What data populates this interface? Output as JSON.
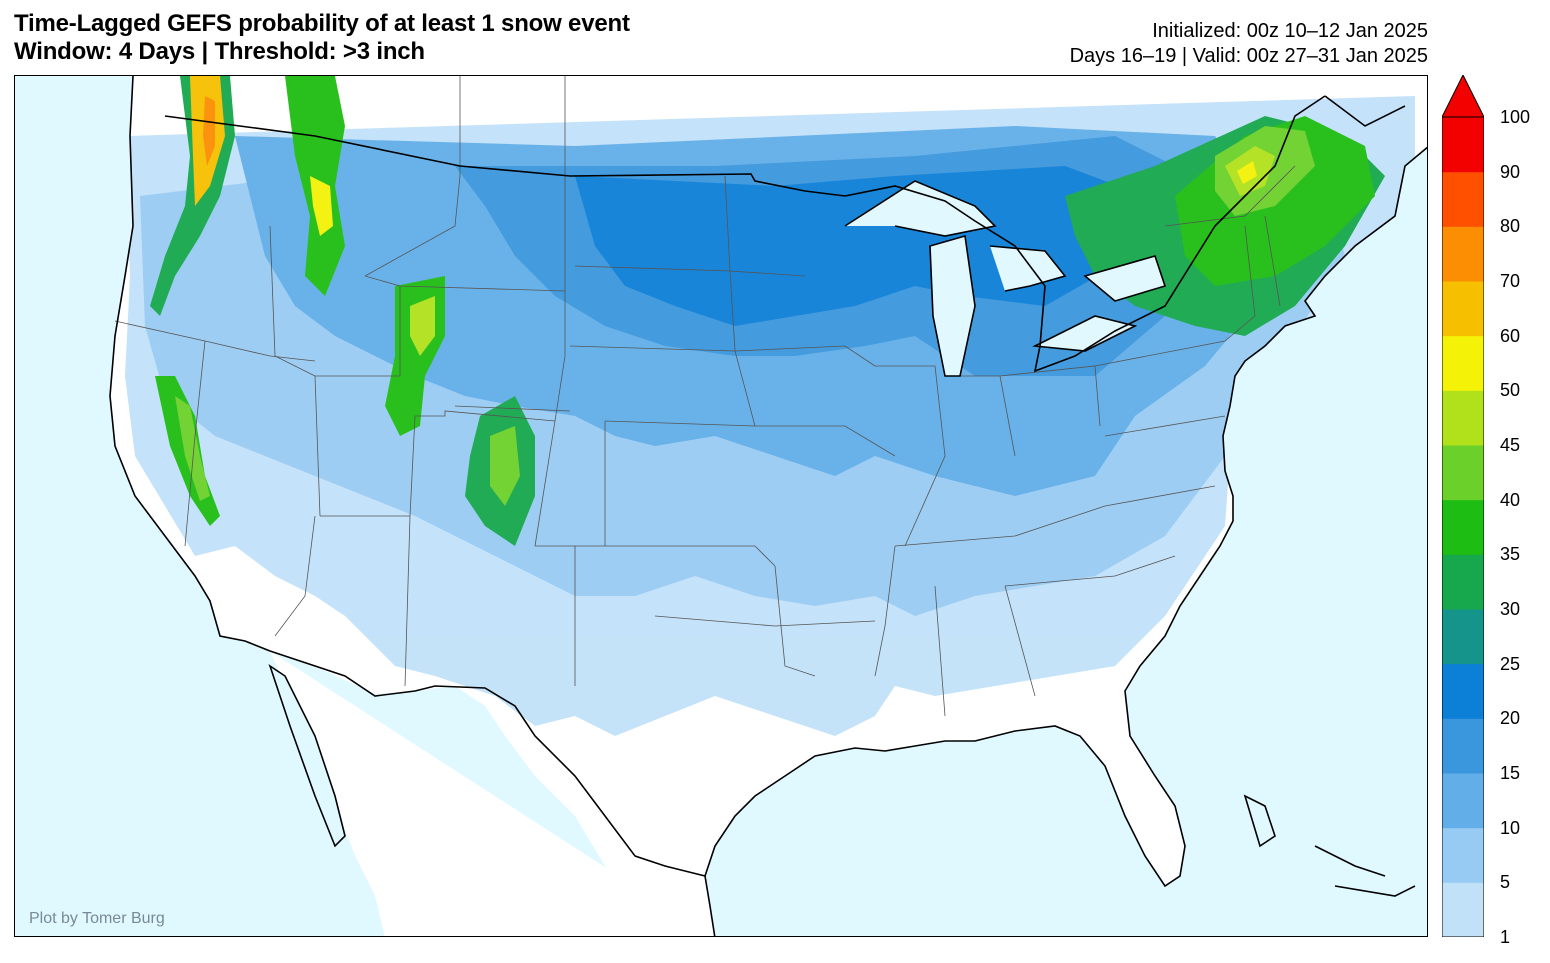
{
  "header": {
    "title_line1": "Time-Lagged GEFS probability of at least 1 snow event",
    "title_line2": "Window: 4 Days | Threshold: >3 inch",
    "initialized": "Initialized: 00z 10–12 Jan 2025",
    "valid": "Days 16–19 | Valid: 00z 27–31 Jan 2025"
  },
  "map": {
    "credit": "Plot by Tomer Burg",
    "colors": {
      "ocean": "#e0f8ff",
      "land": "#ffffff",
      "lake": "#e0f8ff",
      "border": "#000000",
      "state_line": "#555555"
    }
  },
  "colorbar": {
    "levels": [
      "1",
      "5",
      "10",
      "15",
      "20",
      "25",
      "30",
      "35",
      "40",
      "45",
      "50",
      "60",
      "70",
      "80",
      "90",
      "100"
    ],
    "colors": [
      "#c1e1f9",
      "#98cbf3",
      "#62aee8",
      "#3a96dd",
      "#0c7fd7",
      "#14948a",
      "#17a74c",
      "#1ebd13",
      "#6cd02a",
      "#b1e11b",
      "#f4f207",
      "#f6bf00",
      "#fb8e02",
      "#ff5000",
      "#f30000"
    ]
  }
}
